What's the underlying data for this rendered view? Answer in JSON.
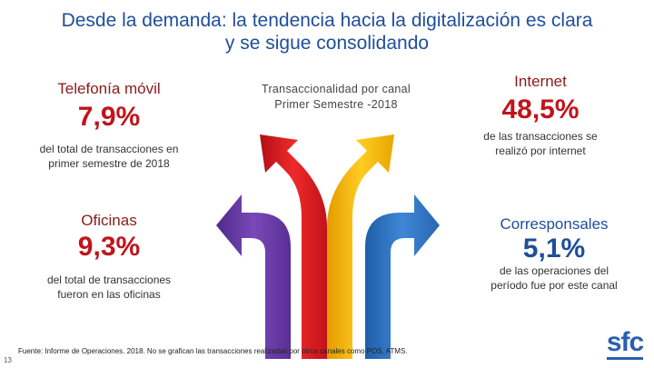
{
  "title": {
    "line1": "Desde la demanda: la tendencia hacia la digitalización es clara",
    "line2": "y se sigue consolidando"
  },
  "center": {
    "line1": "Transaccionalidad por canal",
    "line2": "Primer Semestre -2018"
  },
  "telefonia": {
    "label": "Telefonía móvil",
    "value": "7,9%",
    "desc1": "del total de transacciones en",
    "desc2": "primer semestre de 2018"
  },
  "oficinas": {
    "label": "Oficinas",
    "value": "9,3%",
    "desc1": "del total de transacciones",
    "desc2": "fueron en las oficinas"
  },
  "internet": {
    "label": "Internet",
    "value": "48,5%",
    "desc1": "de las transacciones se",
    "desc2": "realizó por internet"
  },
  "corresponsales": {
    "label": "Corresponsales",
    "value": "5,1%",
    "desc1": "de las operaciones del",
    "desc2": "período fue por este canal"
  },
  "source": "Fuente: Informe de Operaciones. 2018. No se grafican las transacciones realizadas por otros canales como POS, ATMS.",
  "page_number": "13",
  "logo": {
    "text": "sfc"
  },
  "colors": {
    "title": "#1f4e9a",
    "label_red": "#8b1a1a",
    "value_red": "#c0141b",
    "arrow_purple": "#6a3aa5",
    "arrow_red": "#e3161f",
    "arrow_yellow": "#f5b90a",
    "arrow_blue": "#2e74c6"
  }
}
